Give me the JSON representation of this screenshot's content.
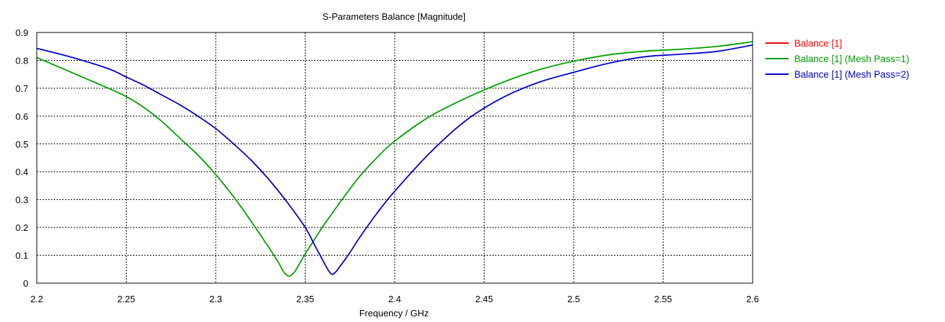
{
  "chart_data": {
    "type": "line",
    "title": "S-Parameters Balance [Magnitude]",
    "xlabel": "Frequency / GHz",
    "ylabel": "",
    "xlim": [
      2.2,
      2.6
    ],
    "ylim": [
      0,
      0.9
    ],
    "x_ticks": [
      "2.2",
      "2.25",
      "2.3",
      "2.35",
      "2.4",
      "2.45",
      "2.5",
      "2.55",
      "2.6"
    ],
    "y_ticks": [
      "0",
      "0.1",
      "0.2",
      "0.3",
      "0.4",
      "0.5",
      "0.6",
      "0.7",
      "0.8",
      "0.9"
    ],
    "grid": true,
    "grid_style": "dotted",
    "legend_position": "right-top",
    "series": [
      {
        "name": "Balance [1]",
        "color": "#ff0000",
        "x": [],
        "y": []
      },
      {
        "name": "Balance [1] (Mesh Pass=1)",
        "color": "#00a000",
        "x": [
          2.2,
          2.22,
          2.24,
          2.25,
          2.26,
          2.27,
          2.28,
          2.29,
          2.3,
          2.31,
          2.32,
          2.33,
          2.335,
          2.338,
          2.341,
          2.344,
          2.347,
          2.35,
          2.355,
          2.36,
          2.365,
          2.37,
          2.38,
          2.39,
          2.4,
          2.42,
          2.44,
          2.46,
          2.48,
          2.5,
          2.52,
          2.54,
          2.56,
          2.58,
          2.6
        ],
        "y": [
          0.81,
          0.755,
          0.7,
          0.67,
          0.63,
          0.58,
          0.52,
          0.46,
          0.39,
          0.31,
          0.22,
          0.125,
          0.075,
          0.04,
          0.025,
          0.04,
          0.072,
          0.105,
          0.155,
          0.205,
          0.25,
          0.295,
          0.38,
          0.45,
          0.51,
          0.6,
          0.665,
          0.72,
          0.765,
          0.797,
          0.82,
          0.833,
          0.84,
          0.85,
          0.867
        ]
      },
      {
        "name": "Balance [1] (Mesh Pass=2)",
        "color": "#0000cc",
        "x": [
          2.2,
          2.22,
          2.24,
          2.25,
          2.26,
          2.27,
          2.28,
          2.29,
          2.3,
          2.31,
          2.32,
          2.33,
          2.34,
          2.35,
          2.355,
          2.36,
          2.363,
          2.365,
          2.367,
          2.37,
          2.375,
          2.38,
          2.39,
          2.4,
          2.42,
          2.44,
          2.46,
          2.48,
          2.5,
          2.52,
          2.54,
          2.56,
          2.58,
          2.6
        ],
        "y": [
          0.843,
          0.81,
          0.77,
          0.74,
          0.71,
          0.675,
          0.64,
          0.6,
          0.555,
          0.5,
          0.44,
          0.37,
          0.29,
          0.2,
          0.14,
          0.08,
          0.045,
          0.032,
          0.04,
          0.065,
          0.11,
          0.16,
          0.25,
          0.33,
          0.47,
          0.585,
          0.665,
          0.72,
          0.757,
          0.79,
          0.813,
          0.822,
          0.832,
          0.855
        ]
      }
    ]
  }
}
